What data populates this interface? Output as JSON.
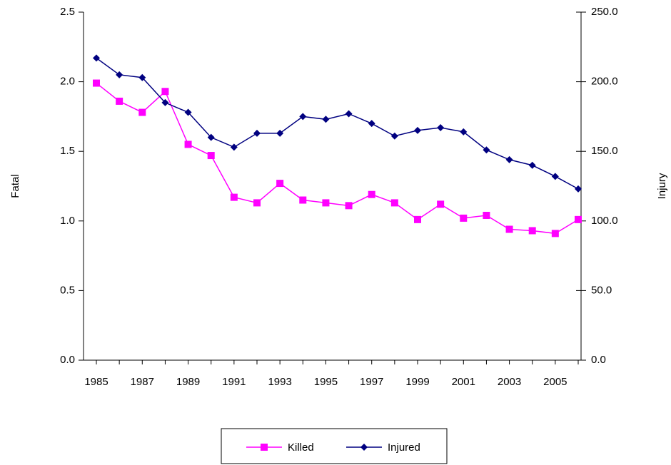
{
  "chart_data": {
    "type": "line",
    "categories": [
      "1985",
      null,
      "1987",
      null,
      "1989",
      null,
      "1991",
      null,
      "1993",
      null,
      "1995",
      null,
      "1997",
      null,
      "1999",
      null,
      "2001",
      null,
      "2003",
      null,
      "2005",
      null
    ],
    "ylabel": "Fatal",
    "y2label": "Injury",
    "ylim": [
      0,
      2.5
    ],
    "yticks": [
      {
        "value": 0,
        "label": "0.0"
      },
      0.5,
      {
        "value": 1,
        "label": "1.0"
      },
      1.5,
      {
        "value": 2,
        "label": "2.0"
      },
      2.5
    ],
    "y2lim": [
      0,
      250
    ],
    "y2ticks": [
      {
        "value": 0,
        "label": "0.0"
      },
      {
        "value": 50,
        "label": "50.0"
      },
      {
        "value": 100,
        "label": "100.0"
      },
      {
        "value": 150,
        "label": "150.0"
      },
      {
        "value": 200,
        "label": "200.0"
      },
      {
        "value": 250,
        "label": "250.0"
      }
    ],
    "series": [
      {
        "name": "Killed",
        "color": "#ff00ff",
        "marker": "square",
        "values": [
          1.99,
          1.86,
          1.78,
          1.93,
          1.55,
          1.47,
          1.17,
          1.13,
          1.27,
          1.15,
          1.13,
          1.11,
          1.19,
          1.13,
          1.01,
          1.12,
          1.02,
          1.04,
          0.94,
          0.93,
          0.91,
          1.01
        ]
      },
      {
        "name": "Injured",
        "color": "#000080",
        "marker": "diamond",
        "axis": "y2",
        "values": [
          217,
          205,
          203,
          185,
          178,
          160,
          153,
          163,
          163,
          175,
          173,
          177,
          170,
          161,
          165,
          167,
          164,
          151,
          144,
          140,
          132,
          123
        ]
      }
    ]
  }
}
